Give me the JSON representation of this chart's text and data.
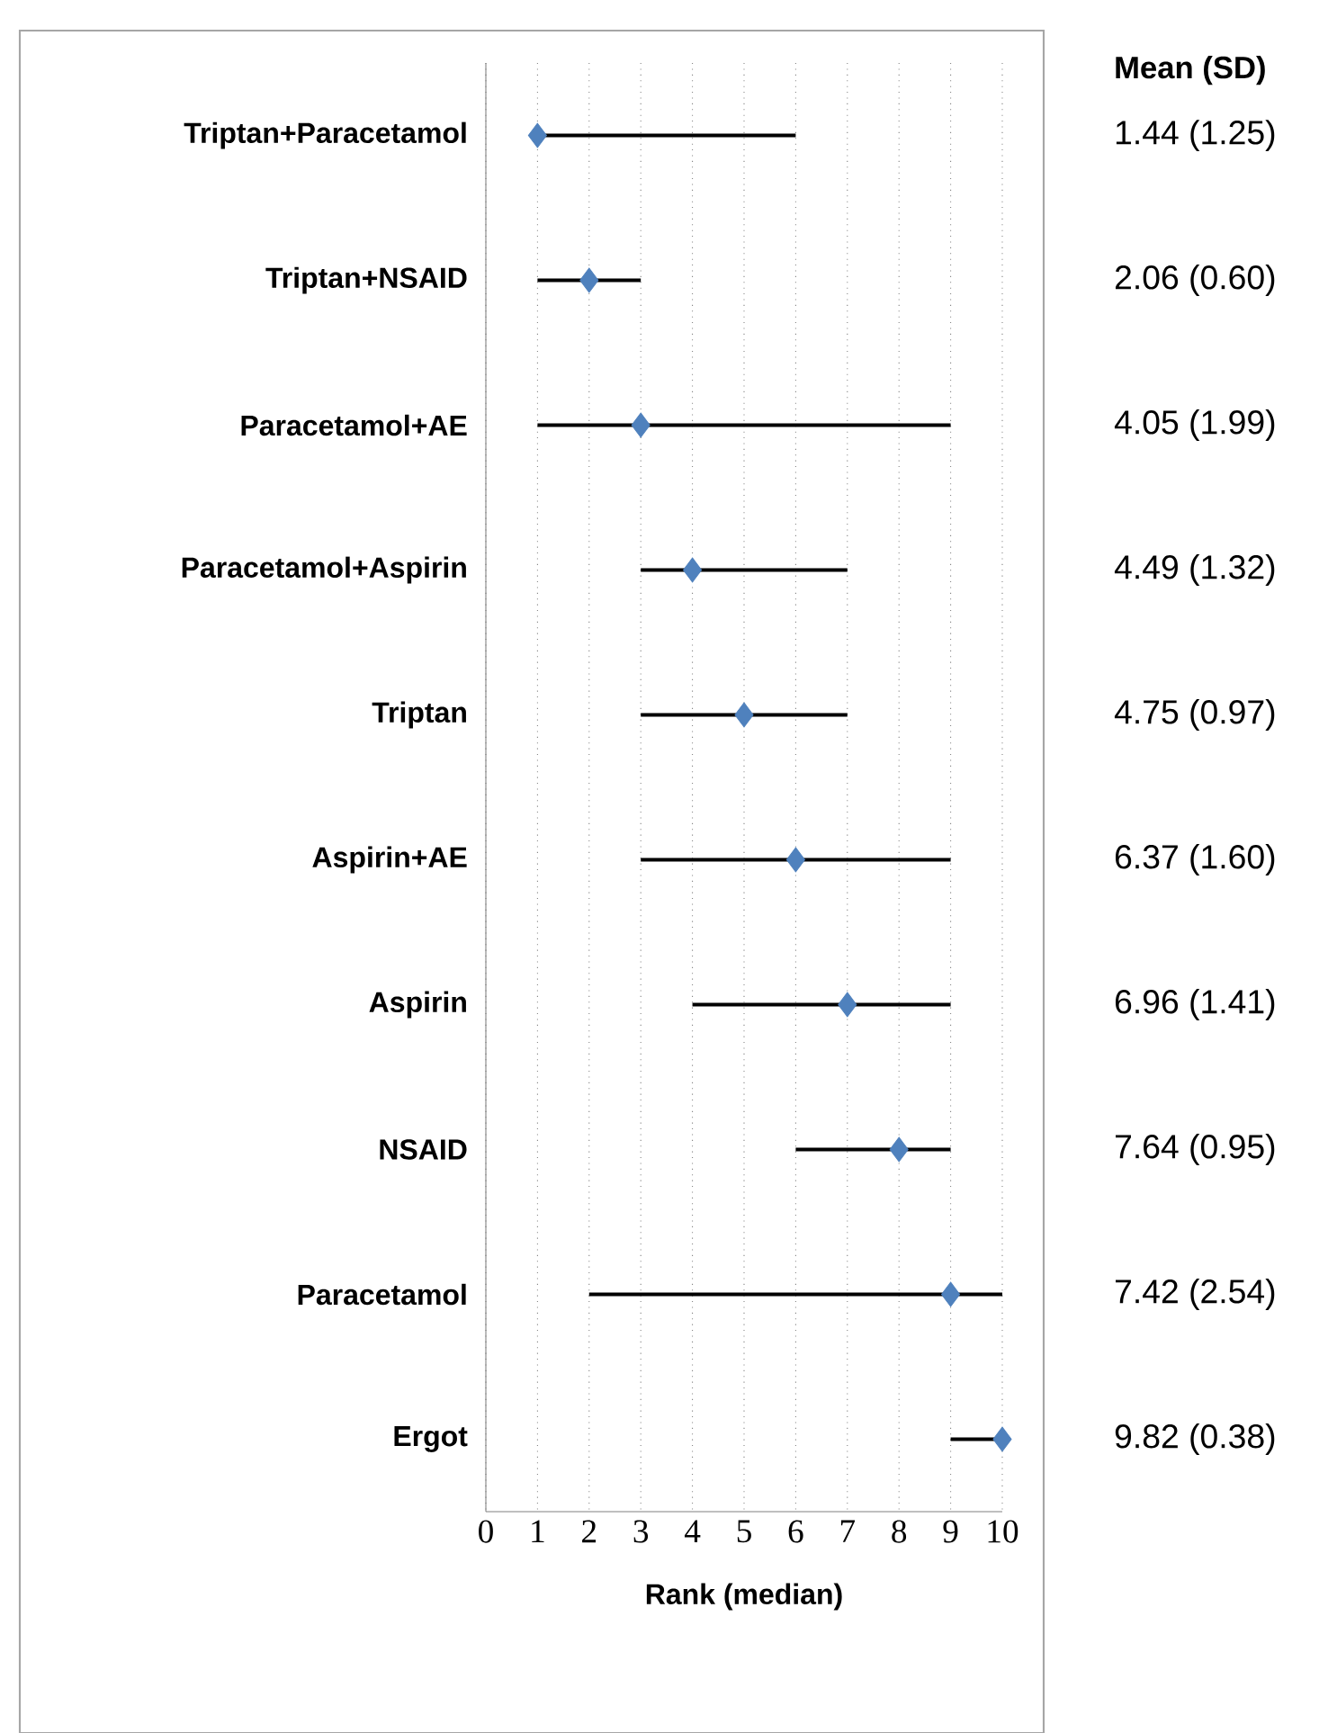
{
  "chart_data": {
    "type": "scatter",
    "orientation": "horizontal",
    "categories": [
      "Triptan+Paracetamol",
      "Triptan+NSAID",
      "Paracetamol+AE",
      "Paracetamol+Aspirin",
      "Triptan",
      "Aspirin+AE",
      "Aspirin",
      "NSAID",
      "Paracetamol",
      "Ergot"
    ],
    "values": [
      1,
      2,
      3,
      4,
      5,
      6,
      7,
      8,
      9,
      10
    ],
    "errors": [
      [
        1,
        6
      ],
      [
        1,
        3
      ],
      [
        1,
        9
      ],
      [
        3,
        7
      ],
      [
        3,
        7
      ],
      [
        3,
        9
      ],
      [
        4,
        9
      ],
      [
        6,
        9
      ],
      [
        2,
        10
      ],
      [
        9,
        10
      ]
    ],
    "color": "#4f81bd",
    "marker": "diamond",
    "grid": "x",
    "xlabel": "Rank (median)",
    "xlim": [
      0,
      10
    ],
    "xticks": [
      0,
      1,
      2,
      3,
      4,
      5,
      6,
      7,
      8,
      9,
      10
    ],
    "annotations": [
      "Mean (SD)",
      "1.44 (1.25)",
      "2.06 (0.60)",
      "4.05 (1.99)",
      "4.49 (1.32)",
      "4.75 (0.97)",
      "6.37 (1.60)",
      "6.96 (1.41)",
      "7.64 (0.95)",
      "7.42 (2.54)",
      "9.82 (0.38)"
    ]
  }
}
